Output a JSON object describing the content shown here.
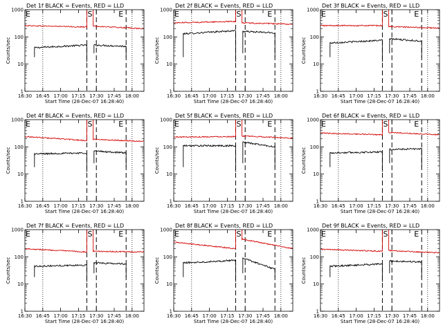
{
  "figure": {
    "colors": {
      "events": "#000000",
      "lld": "#d40000",
      "axes": "#000000",
      "background": "#ffffff"
    },
    "common": {
      "xlabel": "Start Time (28-Dec-07 16:28:40)",
      "ylabel": "Counts/sec",
      "x_ticks": [
        "16:30",
        "16:45",
        "17:00",
        "17:15",
        "17:30",
        "17:45",
        "18:00"
      ],
      "y_ticks": [
        "1",
        "10",
        "100",
        "1000"
      ],
      "markers": [
        "E",
        "S",
        "E"
      ]
    }
  },
  "chart_data": [
    {
      "type": "line",
      "title": "Det 1f BLACK = Events, RED = LLD",
      "y_scale": "log",
      "ylim": [
        1,
        1000
      ],
      "xlim": [
        "16:30",
        "18:10"
      ],
      "x_minutes_from_1630": [
        8,
        52,
        57,
        85
      ],
      "series": [
        {
          "name": "Events",
          "values": [
            40,
            50,
            50,
            45
          ]
        },
        {
          "name": "LLD",
          "values": [
            260,
            230,
            250,
            200
          ]
        }
      ]
    },
    {
      "type": "line",
      "title": "Det 2f BLACK = Events, RED = LLD",
      "y_scale": "log",
      "ylim": [
        1,
        1000
      ],
      "xlim": [
        "16:30",
        "18:10"
      ],
      "x_minutes_from_1630": [
        8,
        52,
        57,
        85
      ],
      "series": [
        {
          "name": "Events",
          "values": [
            130,
            170,
            160,
            140
          ]
        },
        {
          "name": "LLD",
          "values": [
            330,
            370,
            330,
            290
          ]
        }
      ]
    },
    {
      "type": "line",
      "title": "Det 3f BLACK = Events, RED = LLD",
      "y_scale": "log",
      "ylim": [
        1,
        1000
      ],
      "xlim": [
        "16:30",
        "18:10"
      ],
      "x_minutes_from_1630": [
        8,
        52,
        57,
        85
      ],
      "series": [
        {
          "name": "Events",
          "values": [
            60,
            75,
            85,
            70
          ]
        },
        {
          "name": "LLD",
          "values": [
            260,
            260,
            240,
            210
          ]
        }
      ]
    },
    {
      "type": "line",
      "title": "Det 4f BLACK = Events, RED = LLD",
      "y_scale": "log",
      "ylim": [
        1,
        1000
      ],
      "xlim": [
        "16:30",
        "18:10"
      ],
      "x_minutes_from_1630": [
        8,
        52,
        57,
        85
      ],
      "series": [
        {
          "name": "Events",
          "values": [
            55,
            60,
            70,
            60
          ]
        },
        {
          "name": "LLD",
          "values": [
            240,
            170,
            190,
            160
          ]
        }
      ]
    },
    {
      "type": "line",
      "title": "Det 5f BLACK = Events, RED = LLD",
      "y_scale": "log",
      "ylim": [
        1,
        1000
      ],
      "xlim": [
        "16:30",
        "18:10"
      ],
      "x_minutes_from_1630": [
        8,
        52,
        57,
        85
      ],
      "series": [
        {
          "name": "Events",
          "values": [
            110,
            110,
            150,
            100
          ]
        },
        {
          "name": "LLD",
          "values": [
            230,
            240,
            250,
            210
          ]
        }
      ]
    },
    {
      "type": "line",
      "title": "Det 6f BLACK = Events, RED = LLD",
      "y_scale": "log",
      "ylim": [
        1,
        1000
      ],
      "xlim": [
        "16:30",
        "18:10"
      ],
      "x_minutes_from_1630": [
        8,
        52,
        57,
        85
      ],
      "series": [
        {
          "name": "Events",
          "values": [
            60,
            65,
            80,
            85
          ]
        },
        {
          "name": "LLD",
          "values": [
            320,
            280,
            340,
            280
          ]
        }
      ]
    },
    {
      "type": "line",
      "title": "Det 7f BLACK = Events, RED = LLD",
      "y_scale": "log",
      "ylim": [
        1,
        1000
      ],
      "xlim": [
        "16:30",
        "18:10"
      ],
      "x_minutes_from_1630": [
        8,
        52,
        57,
        85
      ],
      "series": [
        {
          "name": "Events",
          "values": [
            45,
            50,
            60,
            55
          ]
        },
        {
          "name": "LLD",
          "values": [
            200,
            150,
            160,
            150
          ]
        }
      ]
    },
    {
      "type": "line",
      "title": "Det 8f BLACK = Events, RED = LLD",
      "y_scale": "log",
      "ylim": [
        1,
        1000
      ],
      "xlim": [
        "16:30",
        "18:10"
      ],
      "x_minutes_from_1630": [
        8,
        52,
        57,
        85
      ],
      "series": [
        {
          "name": "Events",
          "values": [
            60,
            75,
            90,
            35
          ]
        },
        {
          "name": "LLD",
          "values": [
            350,
            200,
            450,
            200
          ]
        }
      ]
    },
    {
      "type": "line",
      "title": "Det 9f BLACK = Events, RED = LLD",
      "y_scale": "log",
      "ylim": [
        1,
        1000
      ],
      "xlim": [
        "16:30",
        "18:10"
      ],
      "x_minutes_from_1630": [
        8,
        52,
        57,
        85
      ],
      "series": [
        {
          "name": "Events",
          "values": [
            45,
            55,
            70,
            65
          ]
        },
        {
          "name": "LLD",
          "values": [
            190,
            160,
            170,
            140
          ]
        }
      ]
    }
  ]
}
